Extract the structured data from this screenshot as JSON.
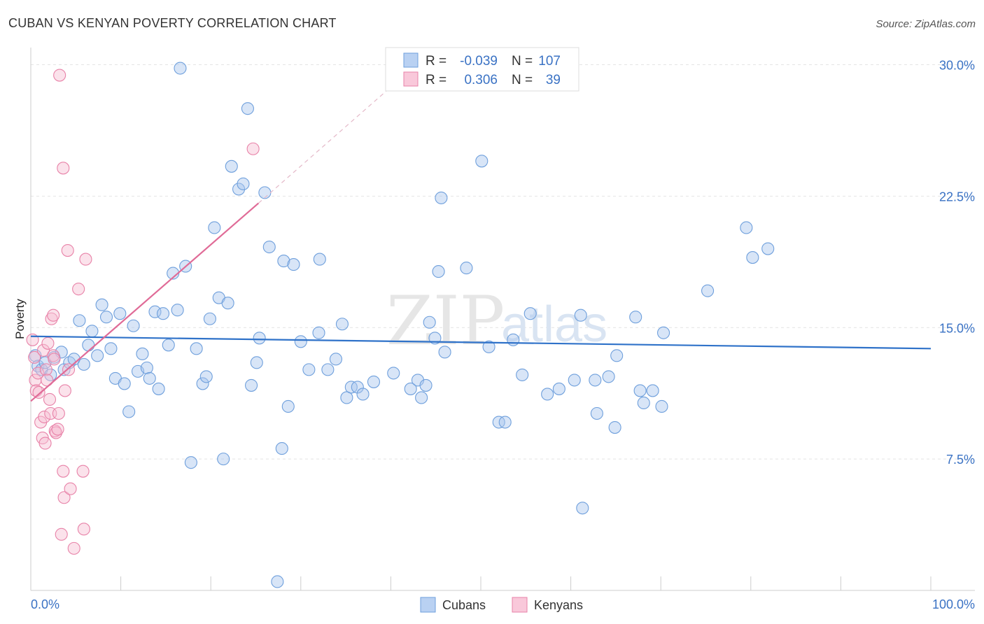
{
  "chart_data": {
    "type": "scatter",
    "title": "CUBAN VS KENYAN POVERTY CORRELATION CHART",
    "source": "Source: ZipAtlas.com",
    "xlabel": "",
    "ylabel": "Poverty",
    "xlim": [
      0,
      100
    ],
    "ylim": [
      0,
      30.5
    ],
    "x_tick_labels": {
      "left": "0.0%",
      "right": "100.0%"
    },
    "y_ticks": [
      {
        "value": 7.5,
        "label": "7.5%"
      },
      {
        "value": 15.0,
        "label": "15.0%"
      },
      {
        "value": 22.5,
        "label": "22.5%"
      },
      {
        "value": 30.0,
        "label": "30.0%"
      }
    ],
    "grid": true,
    "watermark": {
      "zip": "ZIP",
      "atlas": "atlas"
    },
    "legend": {
      "placement": "top-center",
      "rows": [
        {
          "r_label": "R = ",
          "r_value": "-0.039",
          "n_label": "N = ",
          "n_value": "107"
        },
        {
          "r_label": "R = ",
          "r_value": "0.306",
          "n_label": "N = ",
          "n_value": "39"
        }
      ]
    },
    "series": [
      {
        "name": "Cubans",
        "color": "#6e9fdc",
        "fill": "#a8c6ee",
        "trend": {
          "x": [
            0,
            100
          ],
          "y": [
            14.5,
            13.8
          ],
          "color": "#2f72c9",
          "style": "solid"
        },
        "points": [
          [
            0.5,
            13.4
          ],
          [
            0.8,
            12.8
          ],
          [
            1.2,
            12.6
          ],
          [
            1.6,
            13.0
          ],
          [
            2.2,
            12.3
          ],
          [
            2.6,
            13.3
          ],
          [
            3.4,
            13.6
          ],
          [
            3.7,
            12.6
          ],
          [
            4.3,
            13.0
          ],
          [
            4.8,
            13.2
          ],
          [
            5.4,
            15.4
          ],
          [
            5.9,
            12.9
          ],
          [
            6.4,
            14.0
          ],
          [
            6.8,
            14.8
          ],
          [
            7.4,
            13.4
          ],
          [
            7.9,
            16.3
          ],
          [
            8.4,
            15.6
          ],
          [
            8.9,
            13.8
          ],
          [
            9.4,
            12.1
          ],
          [
            9.9,
            15.8
          ],
          [
            10.4,
            11.8
          ],
          [
            10.9,
            10.2
          ],
          [
            11.4,
            15.1
          ],
          [
            11.9,
            12.5
          ],
          [
            12.4,
            13.5
          ],
          [
            12.9,
            12.7
          ],
          [
            13.2,
            12.1
          ],
          [
            13.8,
            15.9
          ],
          [
            14.2,
            11.5
          ],
          [
            14.7,
            15.8
          ],
          [
            15.3,
            14.0
          ],
          [
            15.8,
            18.1
          ],
          [
            16.3,
            16.0
          ],
          [
            16.6,
            29.8
          ],
          [
            17.2,
            18.5
          ],
          [
            17.8,
            7.3
          ],
          [
            18.4,
            13.8
          ],
          [
            19.1,
            11.8
          ],
          [
            19.5,
            12.2
          ],
          [
            19.9,
            15.5
          ],
          [
            20.4,
            20.7
          ],
          [
            20.9,
            16.7
          ],
          [
            21.4,
            7.5
          ],
          [
            21.9,
            16.4
          ],
          [
            22.3,
            24.2
          ],
          [
            23.1,
            22.9
          ],
          [
            23.6,
            23.2
          ],
          [
            24.1,
            27.5
          ],
          [
            24.5,
            11.7
          ],
          [
            25.1,
            13.0
          ],
          [
            25.4,
            14.4
          ],
          [
            26.0,
            22.7
          ],
          [
            26.5,
            19.6
          ],
          [
            27.4,
            0.5
          ],
          [
            27.9,
            8.1
          ],
          [
            28.1,
            18.8
          ],
          [
            28.6,
            10.5
          ],
          [
            29.2,
            18.6
          ],
          [
            30.0,
            14.2
          ],
          [
            30.9,
            12.6
          ],
          [
            32.0,
            14.7
          ],
          [
            32.1,
            18.9
          ],
          [
            33.0,
            12.6
          ],
          [
            33.9,
            13.2
          ],
          [
            34.6,
            15.2
          ],
          [
            35.1,
            11.0
          ],
          [
            35.6,
            11.6
          ],
          [
            36.3,
            11.6
          ],
          [
            36.9,
            11.2
          ],
          [
            38.1,
            11.9
          ],
          [
            40.3,
            12.4
          ],
          [
            42.2,
            11.5
          ],
          [
            43.0,
            12.0
          ],
          [
            43.4,
            11.0
          ],
          [
            43.9,
            11.7
          ],
          [
            44.3,
            15.3
          ],
          [
            44.9,
            14.4
          ],
          [
            45.3,
            18.2
          ],
          [
            45.6,
            22.4
          ],
          [
            46.0,
            13.6
          ],
          [
            48.4,
            18.4
          ],
          [
            50.1,
            24.5
          ],
          [
            50.9,
            13.9
          ],
          [
            52.0,
            9.6
          ],
          [
            52.7,
            9.6
          ],
          [
            53.6,
            14.3
          ],
          [
            54.6,
            12.3
          ],
          [
            55.5,
            15.8
          ],
          [
            57.4,
            11.2
          ],
          [
            58.7,
            11.5
          ],
          [
            60.4,
            12.0
          ],
          [
            61.1,
            15.7
          ],
          [
            62.7,
            12.0
          ],
          [
            62.9,
            10.1
          ],
          [
            64.2,
            12.2
          ],
          [
            64.9,
            9.3
          ],
          [
            65.1,
            13.4
          ],
          [
            67.2,
            15.6
          ],
          [
            67.7,
            11.4
          ],
          [
            68.1,
            10.7
          ],
          [
            69.1,
            11.4
          ],
          [
            70.1,
            10.5
          ],
          [
            70.3,
            14.7
          ],
          [
            75.2,
            17.1
          ],
          [
            79.5,
            20.7
          ],
          [
            80.2,
            19.0
          ],
          [
            81.9,
            19.5
          ],
          [
            61.3,
            4.7
          ]
        ]
      },
      {
        "name": "Kenyans",
        "color": "#e882a8",
        "fill": "#f7bfd3",
        "trend": {
          "x": [
            0,
            25.3
          ],
          "y": [
            10.8,
            22.1
          ],
          "color": "#e06b97",
          "style": "solid",
          "dashed_extension": {
            "x": [
              25.3,
              39.5
            ],
            "y": [
              22.1,
              28.5
            ]
          }
        },
        "points": [
          [
            0.2,
            14.3
          ],
          [
            0.4,
            13.3
          ],
          [
            0.5,
            12.0
          ],
          [
            0.6,
            11.4
          ],
          [
            0.8,
            12.4
          ],
          [
            0.9,
            11.3
          ],
          [
            1.1,
            9.6
          ],
          [
            1.3,
            8.7
          ],
          [
            1.4,
            13.7
          ],
          [
            1.5,
            9.9
          ],
          [
            1.6,
            8.4
          ],
          [
            1.7,
            12.6
          ],
          [
            1.8,
            12.0
          ],
          [
            1.9,
            14.1
          ],
          [
            2.1,
            10.9
          ],
          [
            2.2,
            10.1
          ],
          [
            2.3,
            15.5
          ],
          [
            2.5,
            13.4
          ],
          [
            2.5,
            15.7
          ],
          [
            2.7,
            9.1
          ],
          [
            2.8,
            9.0
          ],
          [
            3.0,
            9.2
          ],
          [
            3.1,
            10.1
          ],
          [
            3.2,
            29.4
          ],
          [
            3.4,
            3.2
          ],
          [
            3.6,
            6.8
          ],
          [
            3.6,
            24.1
          ],
          [
            3.7,
            5.3
          ],
          [
            3.8,
            11.4
          ],
          [
            4.1,
            19.4
          ],
          [
            4.2,
            12.6
          ],
          [
            4.4,
            5.8
          ],
          [
            4.8,
            2.4
          ],
          [
            5.3,
            17.2
          ],
          [
            5.8,
            6.8
          ],
          [
            5.9,
            3.5
          ],
          [
            6.1,
            18.9
          ],
          [
            24.7,
            25.2
          ],
          [
            2.6,
            13.2
          ]
        ]
      }
    ]
  }
}
